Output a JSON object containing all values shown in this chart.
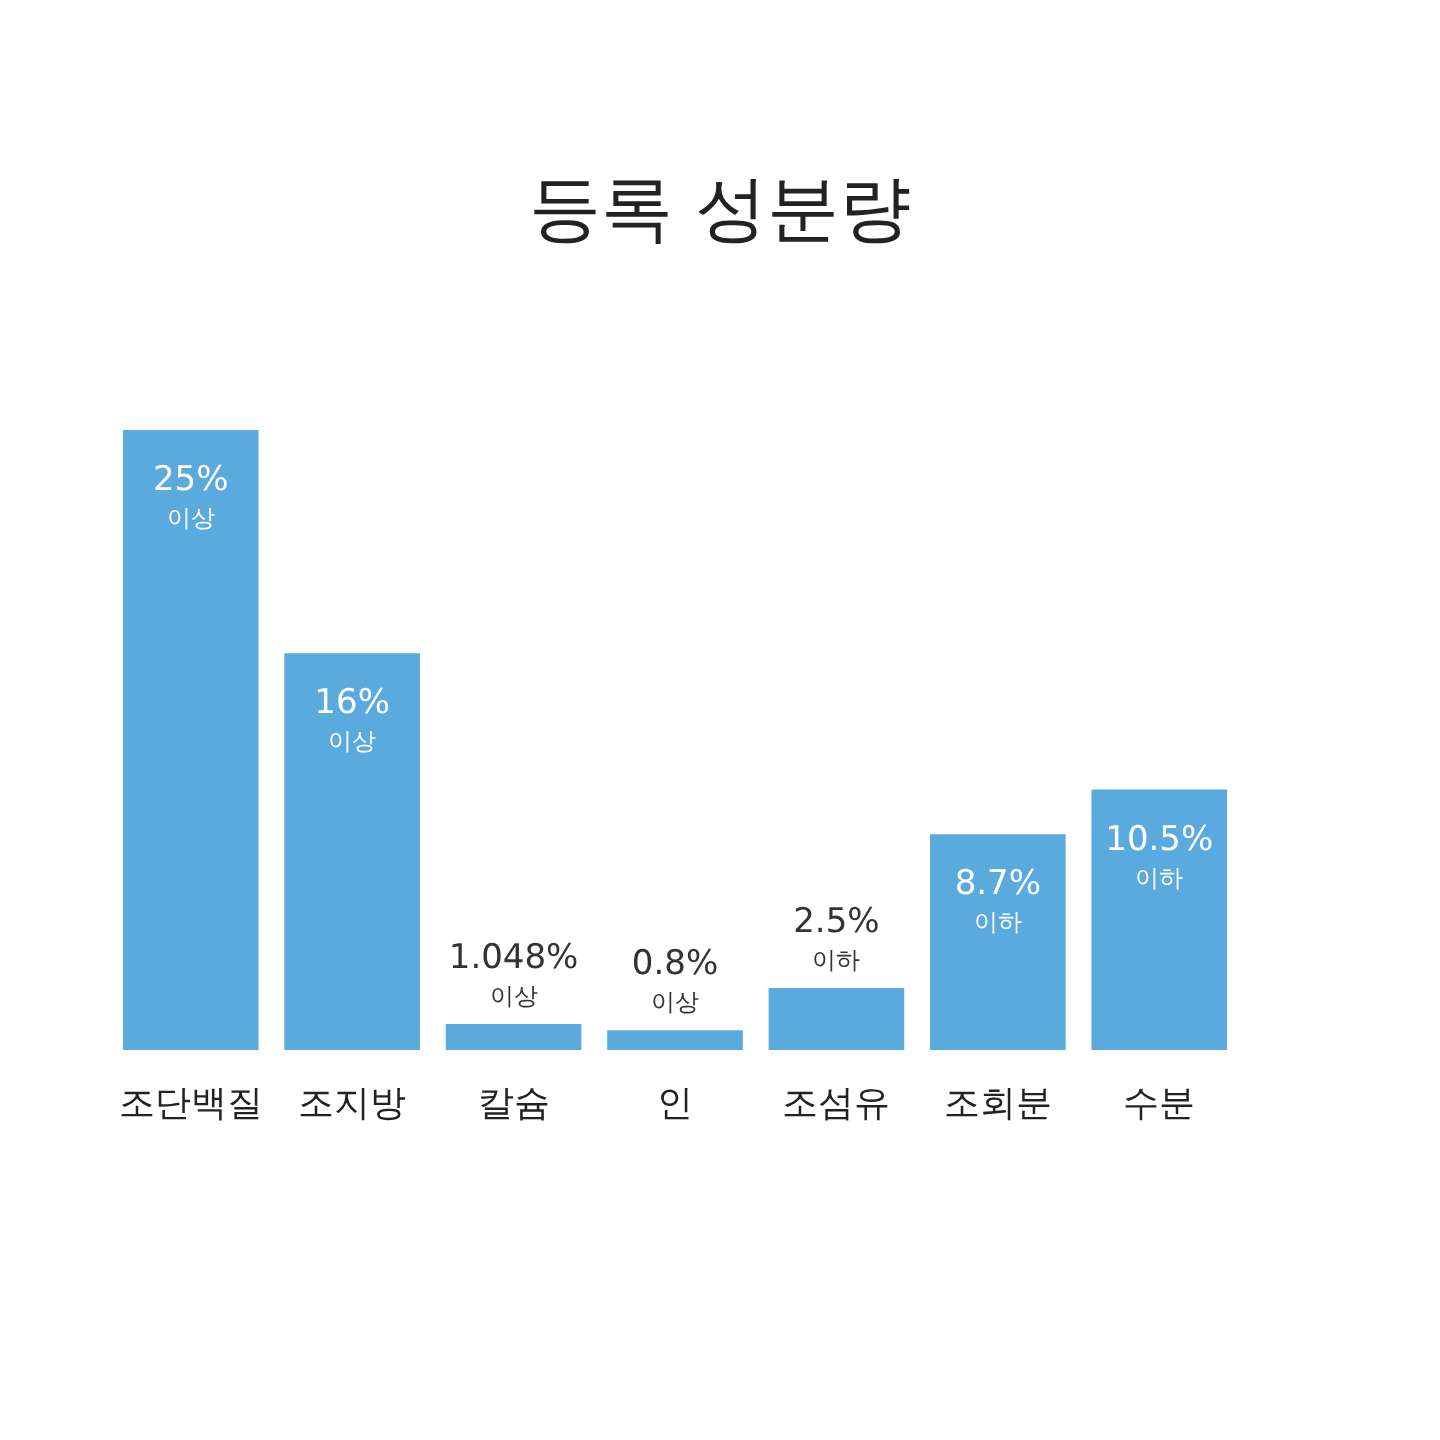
{
  "chart_data": {
    "type": "bar",
    "title": "등록 성분량",
    "categories": [
      "조단백질",
      "조지방",
      "칼슘",
      "인",
      "조섬유",
      "조회분",
      "수분"
    ],
    "values": [
      25,
      16,
      1.048,
      0.8,
      2.5,
      8.7,
      10.5
    ],
    "value_labels": [
      "25%\n이상",
      "16%\n이상",
      "1.048%\n이상",
      "0.8%\n이상",
      "2.5%\n이하",
      "8.7%\n이하",
      "10.5%\n이하"
    ],
    "color": "#5aaade"
  }
}
